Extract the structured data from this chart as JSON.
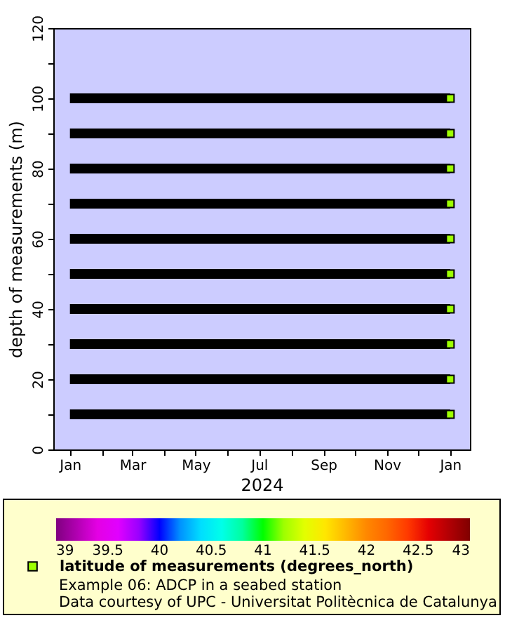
{
  "chart_data": {
    "type": "line",
    "xlabel": "2024",
    "ylabel": "depth of measurements (m)",
    "xlim": [
      "2023-12-16",
      "2025-01-20"
    ],
    "xticks": [
      {
        "value": "2024-01-01",
        "label": "Jan"
      },
      {
        "value": "2024-02-01",
        "label": null
      },
      {
        "value": "2024-03-01",
        "label": "Mar"
      },
      {
        "value": "2024-04-01",
        "label": null
      },
      {
        "value": "2024-05-01",
        "label": "May"
      },
      {
        "value": "2024-06-01",
        "label": null
      },
      {
        "value": "2024-07-01",
        "label": "Jul"
      },
      {
        "value": "2024-08-01",
        "label": null
      },
      {
        "value": "2024-09-01",
        "label": "Sep"
      },
      {
        "value": "2024-10-01",
        "label": null
      },
      {
        "value": "2024-11-01",
        "label": "Nov"
      },
      {
        "value": "2024-12-01",
        "label": null
      },
      {
        "value": "2025-01-01",
        "label": "Jan"
      }
    ],
    "ylim": [
      0,
      120
    ],
    "yticks": [
      0,
      {
        "value": 10,
        "label": null
      },
      20,
      {
        "value": 30,
        "label": null
      },
      40,
      {
        "value": 50,
        "label": null
      },
      60,
      {
        "value": 70,
        "label": null
      },
      80,
      {
        "value": 90,
        "label": null
      },
      100,
      {
        "value": 110,
        "label": null
      },
      120
    ],
    "grid": false,
    "legend": "bottom",
    "clim": [
      39,
      43
    ],
    "cticks": [
      39,
      39.5,
      40,
      40.5,
      41,
      41.5,
      42,
      42.5,
      43
    ],
    "series": [
      {
        "color": "#000000",
        "x": [
          "2024-01-01",
          "2025-01-01"
        ],
        "values": [
          10,
          10
        ]
      },
      {
        "color": "#000000",
        "x": [
          "2024-01-01",
          "2025-01-01"
        ],
        "values": [
          20,
          20
        ]
      },
      {
        "color": "#000000",
        "x": [
          "2024-01-01",
          "2025-01-01"
        ],
        "values": [
          30,
          30
        ]
      },
      {
        "color": "#000000",
        "x": [
          "2024-01-01",
          "2025-01-01"
        ],
        "values": [
          40,
          40
        ]
      },
      {
        "color": "#000000",
        "x": [
          "2024-01-01",
          "2025-01-01"
        ],
        "values": [
          50,
          50
        ]
      },
      {
        "color": "#000000",
        "x": [
          "2024-01-01",
          "2025-01-01"
        ],
        "values": [
          60,
          60
        ]
      },
      {
        "color": "#000000",
        "x": [
          "2024-01-01",
          "2025-01-01"
        ],
        "values": [
          70,
          70
        ]
      },
      {
        "color": "#000000",
        "x": [
          "2024-01-01",
          "2025-01-01"
        ],
        "values": [
          80,
          80
        ]
      },
      {
        "color": "#000000",
        "x": [
          "2024-01-01",
          "2025-01-01"
        ],
        "values": [
          90,
          90
        ]
      },
      {
        "color": "#000000",
        "x": [
          "2024-01-01",
          "2025-01-01"
        ],
        "values": [
          100,
          100
        ]
      },
      {
        "type": "scatter",
        "name": "latitude of measurements (degrees_north)",
        "color": "#9dff00",
        "marker": "square",
        "x": [
          "2025-01-01",
          "2025-01-01",
          "2025-01-01",
          "2025-01-01",
          "2025-01-01",
          "2025-01-01",
          "2025-01-01",
          "2025-01-01",
          "2025-01-01",
          "2025-01-01"
        ],
        "values": [
          10,
          20,
          30,
          40,
          50,
          60,
          70,
          80,
          90,
          100
        ],
        "cvalues": [
          41.2,
          41.2,
          41.2,
          41.2,
          41.2,
          41.2,
          41.2,
          41.2,
          41.2,
          41.2
        ]
      }
    ],
    "annotations": [
      "Example 06: ADCP in a seabed station",
      "Data courtesy of UPC - Universitat Politècnica de Catalunya"
    ]
  }
}
